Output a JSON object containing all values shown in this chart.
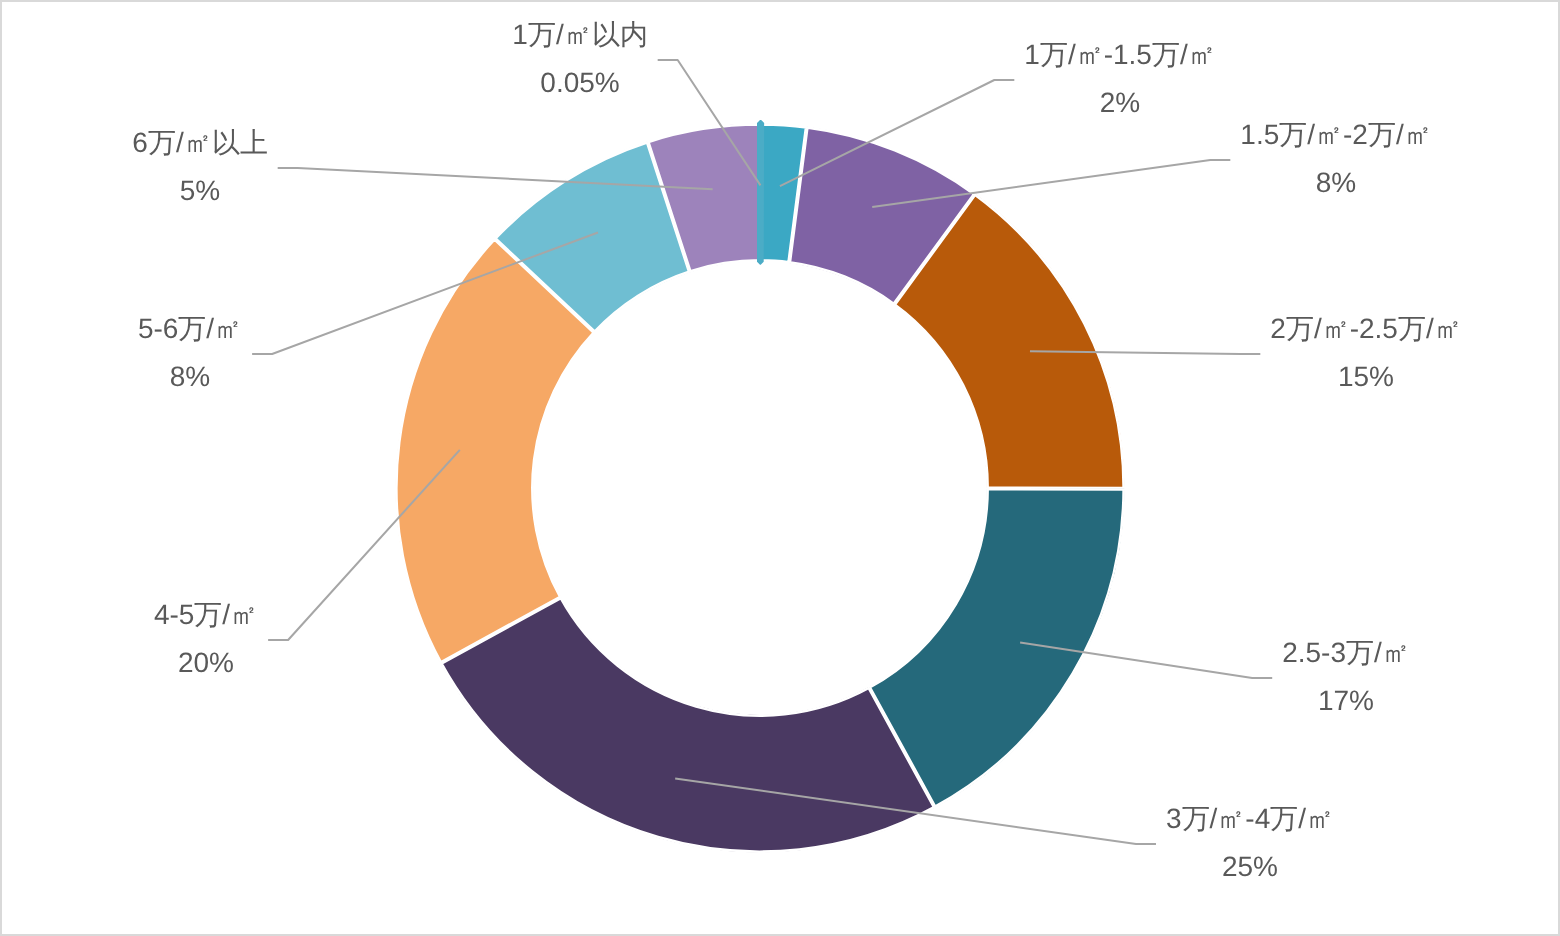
{
  "chart_data": {
    "type": "donut",
    "categories": [
      "1万/㎡以内",
      "1万/㎡-1.5万/㎡",
      "1.5万/㎡-2万/㎡",
      "2万/㎡-2.5万/㎡",
      "2.5-3万/㎡",
      "3万/㎡-4万/㎡",
      "4-5万/㎡",
      "5-6万/㎡",
      "6万/㎡以上"
    ],
    "values": [
      0.05,
      2,
      8,
      15,
      17,
      25,
      20,
      8,
      5
    ],
    "value_labels": [
      "0.05%",
      "2%",
      "8%",
      "15%",
      "17%",
      "25%",
      "20%",
      "8%",
      "5%"
    ],
    "colors": [
      "#4bacc6",
      "#3ba8c4",
      "#7f62a4",
      "#b85a0a",
      "#25697b",
      "#4a3962",
      "#f6a865",
      "#6fbed2",
      "#9d83bb"
    ],
    "legend": false
  }
}
